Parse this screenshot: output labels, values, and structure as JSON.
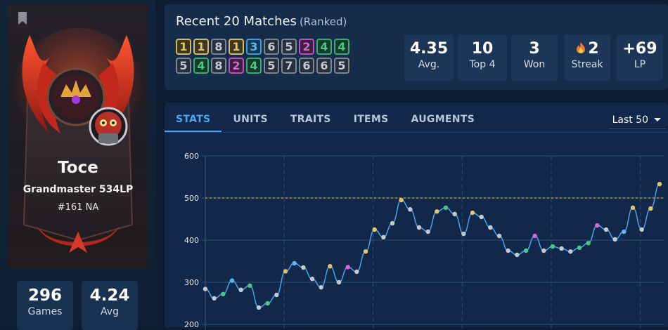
{
  "profile": {
    "name": "Toce",
    "rank": "Grandmaster 534LP",
    "ladder": "#161 NA"
  },
  "left_stats": [
    {
      "value": "296",
      "label": "Games"
    },
    {
      "value": "4.24",
      "label": "Avg"
    }
  ],
  "recent": {
    "title": "Recent 20 Matches",
    "queue": "(Ranked)",
    "row1": [
      1,
      1,
      8,
      1,
      3,
      6,
      5,
      2,
      4,
      4
    ],
    "row2": [
      5,
      4,
      8,
      2,
      4,
      5,
      7,
      6,
      6,
      5
    ]
  },
  "summary": [
    {
      "value": "4.35",
      "label": "Avg."
    },
    {
      "value": "10",
      "label": "Top 4"
    },
    {
      "value": "3",
      "label": "Won"
    },
    {
      "value": "2",
      "label": "Streak",
      "icon": "flame-icon"
    },
    {
      "value": "+69",
      "label": "LP"
    }
  ],
  "tabs": [
    "STATS",
    "UNITS",
    "TRAITS",
    "ITEMS",
    "AUGMENTS"
  ],
  "active_tab": "STATS",
  "range": "Last 50",
  "colors": {
    "placement_1": "#e5c66a",
    "placement_2": "#d968d4",
    "placement_3": "#5fb6ef",
    "placement_4": "#4bc884",
    "placement_other": "#c5cbd2",
    "line": "#4aa3ea",
    "reference_line": "#d8a94a"
  },
  "chart_data": {
    "type": "line",
    "title": "",
    "xlabel": "",
    "ylabel": "",
    "ylim": [
      200,
      600
    ],
    "yticks": [
      600,
      500,
      400,
      300,
      200
    ],
    "reference_line": 500,
    "grid": true,
    "series": [
      {
        "values": [
          284,
          262,
          272,
          304,
          282,
          292,
          240,
          250,
          270,
          326,
          345,
          335,
          308,
          288,
          338,
          300,
          336,
          325,
          373,
          425,
          407,
          440,
          495,
          473,
          430,
          420,
          468,
          477,
          462,
          415,
          465,
          455,
          430,
          410,
          375,
          365,
          375,
          410,
          375,
          385,
          380,
          373,
          382,
          393,
          435,
          425,
          402,
          420,
          477,
          425,
          475,
          533
        ],
        "placements": [
          6,
          6,
          4,
          3,
          6,
          4,
          6,
          4,
          6,
          1,
          3,
          6,
          6,
          6,
          1,
          6,
          2,
          6,
          1,
          1,
          6,
          6,
          1,
          6,
          6,
          6,
          1,
          4,
          6,
          6,
          1,
          6,
          6,
          6,
          6,
          6,
          4,
          2,
          6,
          4,
          6,
          6,
          4,
          4,
          2,
          6,
          6,
          3,
          1,
          6,
          1,
          1
        ]
      }
    ]
  }
}
